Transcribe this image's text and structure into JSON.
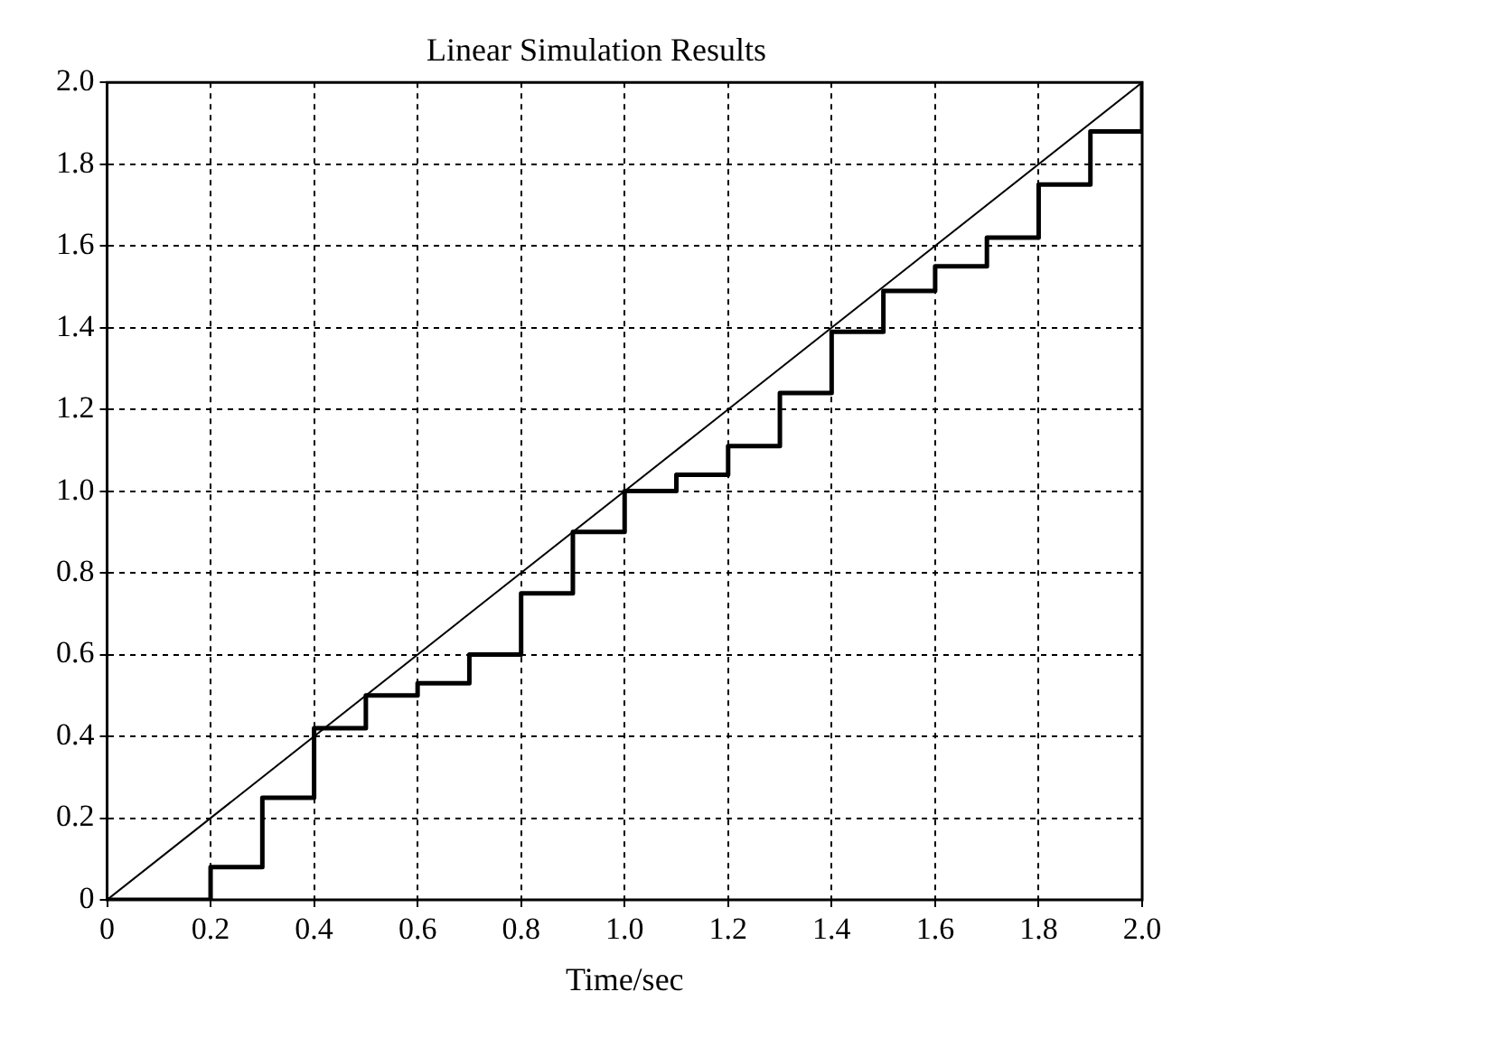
{
  "chart_data": {
    "type": "line",
    "title": "Linear Simulation Results",
    "xlabel": "Time/sec",
    "series": [
      {
        "color": "#000000",
        "x": [
          0,
          2
        ],
        "values": [
          0,
          2
        ]
      },
      {
        "type": "step",
        "color": "#000000",
        "x": [
          0,
          0.1,
          0.2,
          0.3,
          0.4,
          0.5,
          0.6,
          0.7,
          0.8,
          0.9,
          1.0,
          1.1,
          1.2,
          1.3,
          1.4,
          1.5,
          1.6,
          1.7,
          1.8,
          1.9,
          2.0
        ],
        "values": [
          0,
          0,
          0.08,
          0.25,
          0.42,
          0.5,
          0.53,
          0.6,
          0.75,
          0.9,
          1.0,
          1.04,
          1.11,
          1.24,
          1.39,
          1.49,
          1.55,
          1.62,
          1.75,
          1.88,
          2.0
        ]
      }
    ],
    "xlim": [
      0,
      2
    ],
    "xticks": [
      0,
      0.2,
      0.4,
      0.6,
      0.8,
      {
        "value": 1,
        "label": "1.0"
      },
      1.2,
      1.4,
      1.6,
      1.8,
      {
        "value": 2,
        "label": "2.0"
      }
    ],
    "ylim": [
      0,
      2
    ],
    "yticks": [
      0,
      0.2,
      0.4,
      0.6,
      0.8,
      {
        "value": 1,
        "label": "1.0"
      },
      1.2,
      1.4,
      1.6,
      1.8,
      {
        "value": 2,
        "label": "2.0"
      }
    ],
    "grid": true,
    "line_style": "solid",
    "marker": "none",
    "legend": false
  }
}
